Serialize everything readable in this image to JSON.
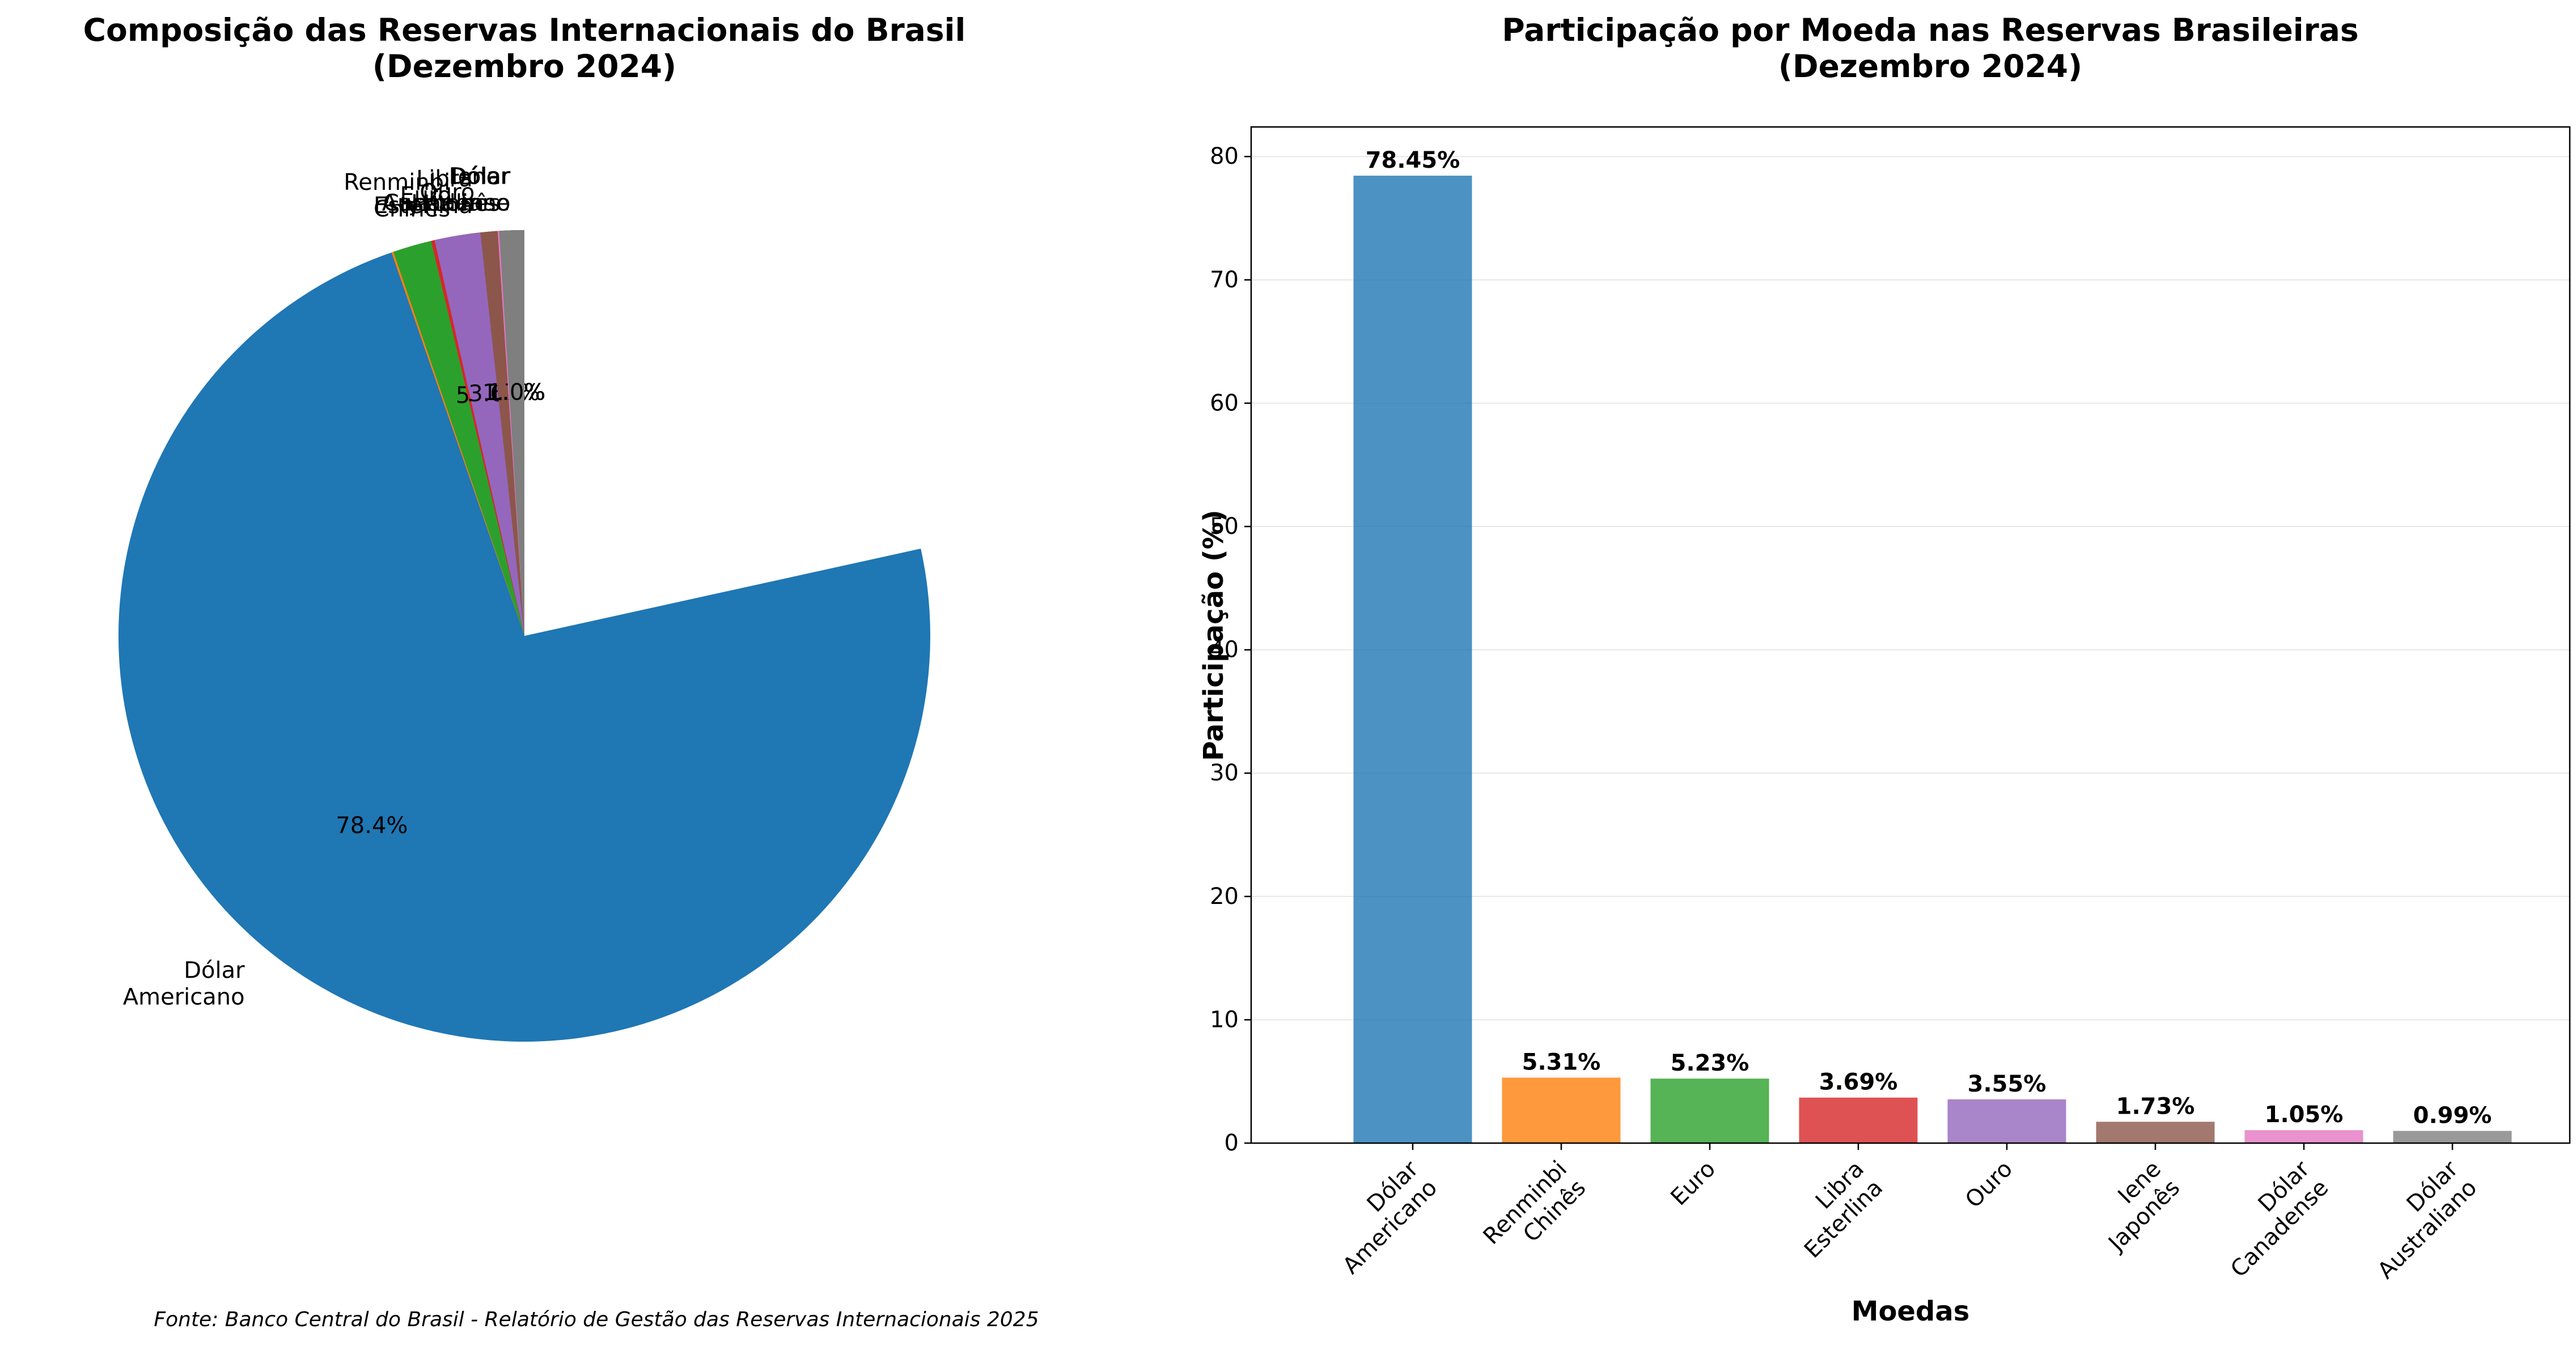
{
  "chart_data": [
    {
      "type": "pie",
      "title": "Composição das Reservas Internacionais do Brasil\n(Dezembro 2024)",
      "categories": [
        "Dólar\nAmericano",
        "Renminbi\nChinês",
        "Euro",
        "Libra\nEsterlina",
        "Ouro",
        "Iene\nJaponês",
        "Dólar\nCanadense",
        "Dólar\nAustraliano"
      ],
      "values": [
        78.45,
        5.31,
        5.23,
        3.69,
        3.55,
        1.73,
        1.05,
        0.99
      ],
      "pct_labels": [
        "78.4%",
        "5.3%",
        "5.2%",
        "3.7%",
        "3.6%",
        "1.7%",
        "1.0%",
        "1.0%"
      ],
      "colors": [
        "#1f77b4",
        "#ff7f0e",
        "#2ca02c",
        "#d62728",
        "#9467bd",
        "#8c564b",
        "#e377c2",
        "#7f7f7f"
      ],
      "start_angle": "top",
      "direction": "counterclockwise",
      "source": "Fonte: Banco Central do Brasil - Relatório de Gestão das Reservas Internacionais 2025"
    },
    {
      "type": "bar",
      "title": "Participação por Moeda nas Reservas Brasileiras\n(Dezembro 2024)",
      "categories": [
        "Dólar\nAmericano",
        "Renminbi\nChinês",
        "Euro",
        "Libra\nEsterlina",
        "Ouro",
        "Iene\nJaponês",
        "Dólar\nCanadense",
        "Dólar\nAustraliano"
      ],
      "values": [
        78.45,
        5.31,
        5.23,
        3.69,
        3.55,
        1.73,
        1.05,
        0.99
      ],
      "value_labels": [
        "78.45%",
        "5.31%",
        "5.23%",
        "3.69%",
        "3.55%",
        "1.73%",
        "1.05%",
        "0.99%"
      ],
      "colors": [
        "#1f77b4",
        "#ff7f0e",
        "#2ca02c",
        "#d62728",
        "#9467bd",
        "#8c564b",
        "#e377c2",
        "#7f7f7f"
      ],
      "bar_alpha": 0.8,
      "xlabel": "Moedas",
      "ylabel": "Participação (%)",
      "ylim": [
        0,
        82.4
      ],
      "yticks": [
        0,
        10,
        20,
        30,
        40,
        50,
        60,
        70,
        80
      ],
      "grid": "y",
      "xtick_rotation": 45
    }
  ]
}
